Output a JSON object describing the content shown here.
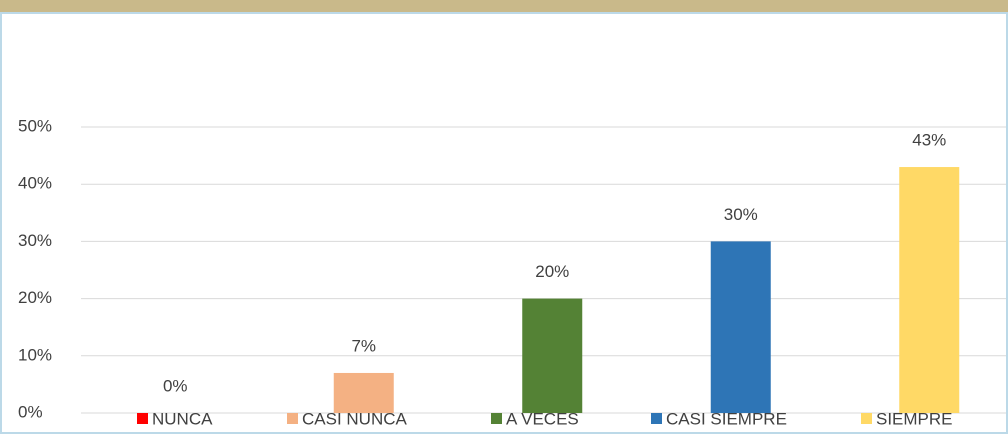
{
  "chart_data": {
    "type": "bar",
    "categories": [
      "NUNCA",
      "CASI NUNCA",
      "A VECES",
      "CASI SIEMPRE",
      "SIEMPRE"
    ],
    "values": [
      0,
      7,
      20,
      30,
      43
    ],
    "value_labels": [
      "0%",
      "7%",
      "20%",
      "30%",
      "43%"
    ],
    "colors": [
      "#ff0000",
      "#f4b183",
      "#548235",
      "#2e75b6",
      "#ffd966"
    ],
    "ylim": [
      0,
      50
    ],
    "yticks": [
      {
        "value": 0,
        "label": "0%"
      },
      {
        "value": 10,
        "label": "10%"
      },
      {
        "value": 20,
        "label": "20%"
      },
      {
        "value": 30,
        "label": "30%"
      },
      {
        "value": 40,
        "label": "40%"
      },
      {
        "value": 50,
        "label": "50%"
      }
    ],
    "grid": true,
    "legend": "bottom"
  }
}
